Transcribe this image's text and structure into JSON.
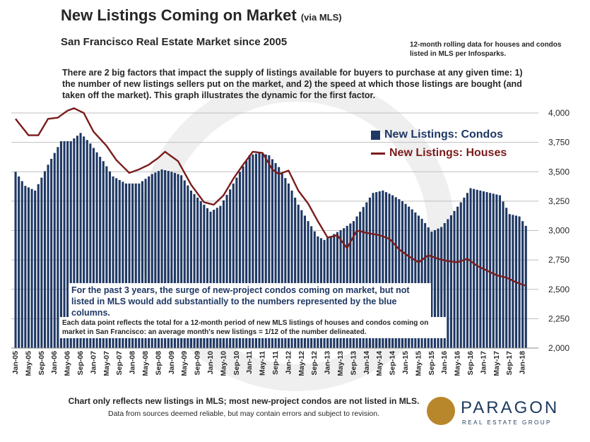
{
  "header": {
    "title": "New Listings Coming on Market",
    "title_suffix": "(via MLS)",
    "subtitle": "San Francisco Real Estate Market since 2005",
    "source_note": "12-month rolling data for houses and condos listed in MLS per Infosparks."
  },
  "intro_text": "There are 2 big factors that impact the supply of listings available for buyers to purchase at any given time: 1) the number of new listings sellers put on the market, and 2) the speed at which those listings are bought (and taken off the market). This graph illustrates the dynamic for the first factor.",
  "notes": {
    "condo_note": "For the past 3 years, the surge of new-project condos coming on market, but not listed in MLS would add substantially to the numbers represented by the blue columns.",
    "data_point_note": "Each data point reflects the total for a 12-month period of new MLS listings of houses and condos coming on market in San Francisco: an average month's new listings = 1/12 of the number delineated."
  },
  "footer": {
    "line1": "Chart only reflects new listings in MLS; most new-project condos are not listed in MLS.",
    "line2": "Data from sources deemed reliable, but may contain errors and subject to revision."
  },
  "logo": {
    "name": "PARAGON",
    "tagline": "REAL ESTATE GROUP"
  },
  "colors": {
    "condos": "#1f3864",
    "houses": "#7b1c1c",
    "gridline": "#bfbfbf",
    "logo_gold": "#b8872b",
    "logo_navy": "#1e3a5f"
  },
  "chart_data": {
    "type": "bar",
    "title": "New Listings Coming on Market (via MLS)",
    "xlabel": "",
    "ylabel": "",
    "ylim": [
      2000,
      4000
    ],
    "yticks": [
      2000,
      2250,
      2500,
      2750,
      3000,
      3250,
      3500,
      3750,
      4000
    ],
    "ytick_labels": [
      "2,000",
      "2,250",
      "2,500",
      "2,750",
      "3,000",
      "3,250",
      "3,500",
      "3,750",
      "4,000"
    ],
    "legend": [
      "New Listings: Condos",
      "New Listings: Houses"
    ],
    "legend_position": "top-right",
    "grid": true,
    "x_tick_labels": [
      "Jan-05",
      "May-05",
      "Sep-05",
      "Jan-06",
      "May-06",
      "Sep-06",
      "Jan-07",
      "May-07",
      "Sep-07",
      "Jan-08",
      "May-08",
      "Sep-08",
      "Jan-09",
      "May-09",
      "Sep-09",
      "Jan-10",
      "May-10",
      "Sep-10",
      "Jan-11",
      "May-11",
      "Sep-11",
      "Jan-12",
      "May-12",
      "Sep-12",
      "Jan-13",
      "May-13",
      "Sep-13",
      "Jan-14",
      "May-14",
      "Sep-14",
      "Jan-15",
      "May-15",
      "Sep-15",
      "Jan-16",
      "May-16",
      "Sep-16",
      "Jan-17",
      "May-17",
      "Sep-17",
      "Jan-18"
    ],
    "series_anchors": {
      "note": "Monthly values Jan-05 through Feb-18 (158 points), linearly interpolated between these month-index anchors.",
      "condos": [
        [
          0,
          3500
        ],
        [
          3,
          3380
        ],
        [
          6,
          3340
        ],
        [
          10,
          3560
        ],
        [
          14,
          3760
        ],
        [
          17,
          3760
        ],
        [
          20,
          3830
        ],
        [
          23,
          3740
        ],
        [
          27,
          3590
        ],
        [
          30,
          3460
        ],
        [
          34,
          3400
        ],
        [
          38,
          3400
        ],
        [
          42,
          3480
        ],
        [
          45,
          3520
        ],
        [
          48,
          3500
        ],
        [
          51,
          3470
        ],
        [
          54,
          3340
        ],
        [
          57,
          3250
        ],
        [
          60,
          3160
        ],
        [
          63,
          3210
        ],
        [
          66,
          3350
        ],
        [
          69,
          3500
        ],
        [
          72,
          3640
        ],
        [
          75,
          3660
        ],
        [
          78,
          3640
        ],
        [
          81,
          3540
        ],
        [
          84,
          3400
        ],
        [
          87,
          3220
        ],
        [
          90,
          3080
        ],
        [
          93,
          2950
        ],
        [
          95,
          2920
        ],
        [
          98,
          2970
        ],
        [
          101,
          3020
        ],
        [
          104,
          3080
        ],
        [
          107,
          3200
        ],
        [
          110,
          3320
        ],
        [
          113,
          3340
        ],
        [
          116,
          3300
        ],
        [
          119,
          3250
        ],
        [
          122,
          3180
        ],
        [
          125,
          3100
        ],
        [
          128,
          2990
        ],
        [
          131,
          3030
        ],
        [
          134,
          3130
        ],
        [
          137,
          3240
        ],
        [
          140,
          3360
        ],
        [
          143,
          3340
        ],
        [
          146,
          3320
        ],
        [
          149,
          3300
        ],
        [
          152,
          3140
        ],
        [
          155,
          3120
        ],
        [
          157,
          3040
        ]
      ],
      "houses": [
        [
          0,
          3950
        ],
        [
          4,
          3810
        ],
        [
          7,
          3810
        ],
        [
          10,
          3950
        ],
        [
          13,
          3960
        ],
        [
          16,
          4020
        ],
        [
          18,
          4040
        ],
        [
          21,
          4000
        ],
        [
          24,
          3840
        ],
        [
          28,
          3720
        ],
        [
          31,
          3600
        ],
        [
          35,
          3490
        ],
        [
          38,
          3520
        ],
        [
          41,
          3560
        ],
        [
          44,
          3620
        ],
        [
          46,
          3670
        ],
        [
          50,
          3590
        ],
        [
          54,
          3390
        ],
        [
          58,
          3240
        ],
        [
          61,
          3220
        ],
        [
          64,
          3300
        ],
        [
          67,
          3440
        ],
        [
          70,
          3560
        ],
        [
          73,
          3670
        ],
        [
          76,
          3660
        ],
        [
          79,
          3520
        ],
        [
          81,
          3480
        ],
        [
          84,
          3510
        ],
        [
          87,
          3340
        ],
        [
          90,
          3230
        ],
        [
          93,
          3080
        ],
        [
          96,
          2940
        ],
        [
          99,
          2960
        ],
        [
          102,
          2850
        ],
        [
          105,
          3000
        ],
        [
          108,
          2980
        ],
        [
          112,
          2960
        ],
        [
          115,
          2930
        ],
        [
          118,
          2840
        ],
        [
          121,
          2780
        ],
        [
          124,
          2730
        ],
        [
          127,
          2790
        ],
        [
          130,
          2760
        ],
        [
          133,
          2740
        ],
        [
          136,
          2730
        ],
        [
          139,
          2760
        ],
        [
          142,
          2700
        ],
        [
          145,
          2660
        ],
        [
          148,
          2620
        ],
        [
          151,
          2600
        ],
        [
          154,
          2560
        ],
        [
          157,
          2530
        ]
      ]
    }
  }
}
